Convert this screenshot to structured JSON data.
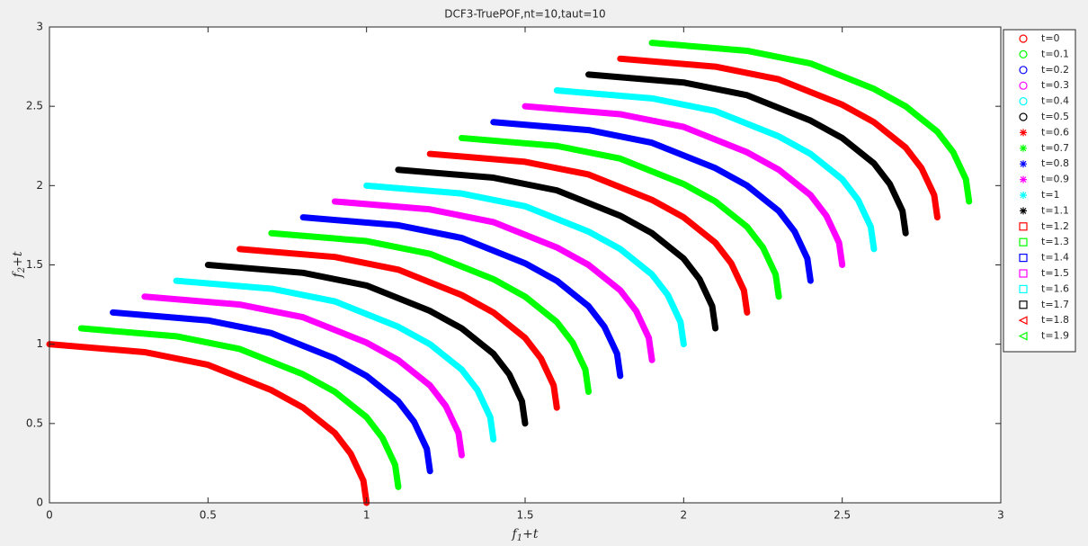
{
  "chart_data": {
    "type": "line",
    "title": "DCF3-TruePOF,nt=10,taut=10",
    "xlabel": [
      "f",
      "1",
      "+t"
    ],
    "ylabel": [
      "f",
      "2",
      "+t"
    ],
    "xlim": [
      0,
      3
    ],
    "ylim": [
      0,
      3
    ],
    "xticks": [
      0,
      0.5,
      1,
      1.5,
      2,
      2.5,
      3
    ],
    "yticks": [
      0,
      0.5,
      1,
      1.5,
      2,
      2.5,
      3
    ],
    "grid": false,
    "legend": "outside-right",
    "series": [
      {
        "name": "t=0",
        "color": "#ff0000",
        "marker": "o",
        "x": [
          0,
          0.3,
          0.5,
          0.7,
          0.8,
          0.9,
          0.95,
          0.99,
          1
        ],
        "values": [
          1,
          0.95,
          0.87,
          0.71,
          0.6,
          0.44,
          0.31,
          0.14,
          0
        ]
      },
      {
        "name": "t=0.1",
        "color": "#00ff00",
        "marker": "o",
        "x": [
          0.1,
          0.4,
          0.6,
          0.8,
          0.9,
          1,
          1.05,
          1.09,
          1.1
        ],
        "values": [
          1.1,
          1.05,
          0.97,
          0.81,
          0.7,
          0.54,
          0.41,
          0.24,
          0.1
        ]
      },
      {
        "name": "t=0.2",
        "color": "#0000ff",
        "marker": "o",
        "x": [
          0.2,
          0.5,
          0.7,
          0.9,
          1,
          1.1,
          1.15,
          1.19,
          1.2
        ],
        "values": [
          1.2,
          1.15,
          1.07,
          0.91,
          0.8,
          0.64,
          0.51,
          0.34,
          0.2
        ]
      },
      {
        "name": "t=0.3",
        "color": "#ff00ff",
        "marker": "o",
        "x": [
          0.3,
          0.6,
          0.8,
          1,
          1.1,
          1.2,
          1.25,
          1.29,
          1.3
        ],
        "values": [
          1.3,
          1.25,
          1.17,
          1.01,
          0.9,
          0.74,
          0.61,
          0.44,
          0.3
        ]
      },
      {
        "name": "t=0.4",
        "color": "#00ffff",
        "marker": "o",
        "x": [
          0.4,
          0.7,
          0.9,
          1.1,
          1.2,
          1.3,
          1.35,
          1.39,
          1.4
        ],
        "values": [
          1.4,
          1.35,
          1.27,
          1.11,
          1,
          0.84,
          0.71,
          0.54,
          0.4
        ]
      },
      {
        "name": "t=0.5",
        "color": "#000000",
        "marker": "o",
        "x": [
          0.5,
          0.8,
          1,
          1.2,
          1.3,
          1.4,
          1.45,
          1.49,
          1.5
        ],
        "values": [
          1.5,
          1.45,
          1.37,
          1.21,
          1.1,
          0.94,
          0.81,
          0.64,
          0.5
        ]
      },
      {
        "name": "t=0.6",
        "color": "#ff0000",
        "marker": "*",
        "x": [
          0.6,
          0.9,
          1.1,
          1.3,
          1.4,
          1.5,
          1.55,
          1.59,
          1.6
        ],
        "values": [
          1.6,
          1.55,
          1.47,
          1.31,
          1.2,
          1.04,
          0.91,
          0.74,
          0.6
        ]
      },
      {
        "name": "t=0.7",
        "color": "#00ff00",
        "marker": "*",
        "x": [
          0.7,
          1,
          1.2,
          1.4,
          1.5,
          1.6,
          1.65,
          1.69,
          1.7
        ],
        "values": [
          1.7,
          1.65,
          1.57,
          1.41,
          1.3,
          1.14,
          1.01,
          0.84,
          0.7
        ]
      },
      {
        "name": "t=0.8",
        "color": "#0000ff",
        "marker": "*",
        "x": [
          0.8,
          1.1,
          1.3,
          1.5,
          1.6,
          1.7,
          1.75,
          1.79,
          1.8
        ],
        "values": [
          1.8,
          1.75,
          1.67,
          1.51,
          1.4,
          1.24,
          1.11,
          0.94,
          0.8
        ]
      },
      {
        "name": "t=0.9",
        "color": "#ff00ff",
        "marker": "*",
        "x": [
          0.9,
          1.2,
          1.4,
          1.6,
          1.7,
          1.8,
          1.85,
          1.89,
          1.9
        ],
        "values": [
          1.9,
          1.85,
          1.77,
          1.61,
          1.5,
          1.34,
          1.21,
          1.04,
          0.9
        ]
      },
      {
        "name": "t=1",
        "color": "#00ffff",
        "marker": "*",
        "x": [
          1,
          1.3,
          1.5,
          1.7,
          1.8,
          1.9,
          1.95,
          1.99,
          2
        ],
        "values": [
          2,
          1.95,
          1.87,
          1.71,
          1.6,
          1.44,
          1.31,
          1.14,
          1
        ]
      },
      {
        "name": "t=1.1",
        "color": "#000000",
        "marker": "*",
        "x": [
          1.1,
          1.4,
          1.6,
          1.8,
          1.9,
          2,
          2.05,
          2.09,
          2.1
        ],
        "values": [
          2.1,
          2.05,
          1.97,
          1.81,
          1.7,
          1.54,
          1.41,
          1.24,
          1.1
        ]
      },
      {
        "name": "t=1.2",
        "color": "#ff0000",
        "marker": "s",
        "x": [
          1.2,
          1.5,
          1.7,
          1.9,
          2,
          2.1,
          2.15,
          2.19,
          2.2
        ],
        "values": [
          2.2,
          2.15,
          2.07,
          1.91,
          1.8,
          1.64,
          1.51,
          1.34,
          1.2
        ]
      },
      {
        "name": "t=1.3",
        "color": "#00ff00",
        "marker": "s",
        "x": [
          1.3,
          1.6,
          1.8,
          2,
          2.1,
          2.2,
          2.25,
          2.29,
          2.3
        ],
        "values": [
          2.3,
          2.25,
          2.17,
          2.01,
          1.9,
          1.74,
          1.61,
          1.44,
          1.3
        ]
      },
      {
        "name": "t=1.4",
        "color": "#0000ff",
        "marker": "s",
        "x": [
          1.4,
          1.7,
          1.9,
          2.1,
          2.2,
          2.3,
          2.35,
          2.39,
          2.4
        ],
        "values": [
          2.4,
          2.35,
          2.27,
          2.11,
          2,
          1.84,
          1.71,
          1.54,
          1.4
        ]
      },
      {
        "name": "t=1.5",
        "color": "#ff00ff",
        "marker": "s",
        "x": [
          1.5,
          1.8,
          2,
          2.2,
          2.3,
          2.4,
          2.45,
          2.49,
          2.5
        ],
        "values": [
          2.5,
          2.45,
          2.37,
          2.21,
          2.1,
          1.94,
          1.81,
          1.64,
          1.5
        ]
      },
      {
        "name": "t=1.6",
        "color": "#00ffff",
        "marker": "s",
        "x": [
          1.6,
          1.9,
          2.1,
          2.3,
          2.4,
          2.5,
          2.55,
          2.59,
          2.6
        ],
        "values": [
          2.6,
          2.55,
          2.47,
          2.31,
          2.2,
          2.04,
          1.91,
          1.74,
          1.6
        ]
      },
      {
        "name": "t=1.7",
        "color": "#000000",
        "marker": "s",
        "x": [
          1.7,
          2,
          2.2,
          2.4,
          2.5,
          2.6,
          2.65,
          2.69,
          2.7
        ],
        "values": [
          2.7,
          2.65,
          2.57,
          2.41,
          2.3,
          2.14,
          2.01,
          1.84,
          1.7
        ]
      },
      {
        "name": "t=1.8",
        "color": "#ff0000",
        "marker": "<",
        "x": [
          1.8,
          2.1,
          2.3,
          2.5,
          2.6,
          2.7,
          2.75,
          2.79,
          2.8
        ],
        "values": [
          2.8,
          2.75,
          2.67,
          2.51,
          2.4,
          2.24,
          2.11,
          1.94,
          1.8
        ]
      },
      {
        "name": "t=1.9",
        "color": "#00ff00",
        "marker": "<",
        "x": [
          1.9,
          2.2,
          2.4,
          2.6,
          2.7,
          2.8,
          2.85,
          2.89,
          2.9
        ],
        "values": [
          2.9,
          2.85,
          2.77,
          2.61,
          2.5,
          2.34,
          2.21,
          2.04,
          1.9
        ]
      }
    ]
  }
}
